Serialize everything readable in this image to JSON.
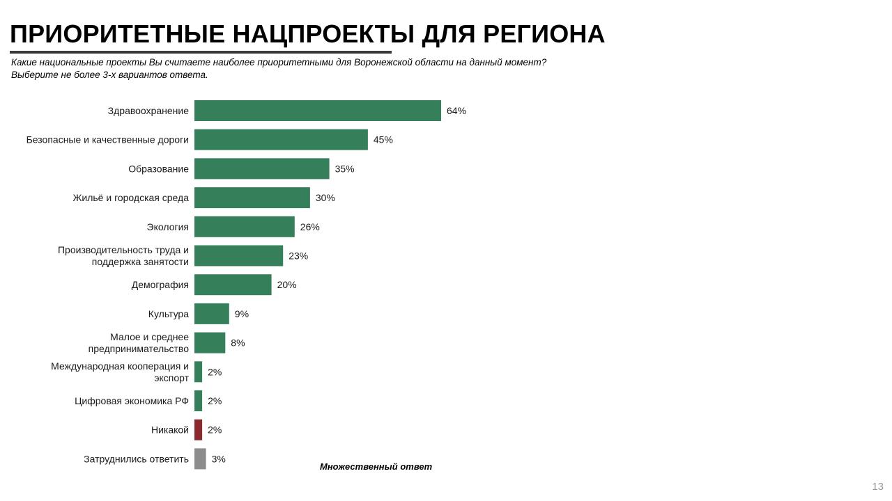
{
  "slide": {
    "title": "ПРИОРИТЕТНЫЕ НАЦПРОЕКТЫ ДЛЯ РЕГИОНА",
    "subtitle_lines": [
      "Какие национальные проекты Вы считаете наиболее приоритетными для Воронежской области на данный момент?",
      "Выберите не более 3-х вариантов ответа."
    ],
    "footnote": "Множественный ответ",
    "page_number": "13"
  },
  "chart_data": {
    "type": "bar",
    "orientation": "horizontal",
    "categories": [
      [
        "Здравоохранение"
      ],
      [
        "Безопасные и качественные дороги"
      ],
      [
        "Образование"
      ],
      [
        "Жильё и городская среда"
      ],
      [
        "Экология"
      ],
      [
        "Производительность труда и",
        "поддержка занятости"
      ],
      [
        "Демография"
      ],
      [
        "Культура"
      ],
      [
        "Малое и среднее",
        "предпринимательство"
      ],
      [
        "Международная кооперация и",
        "экспорт"
      ],
      [
        "Цифровая экономика РФ"
      ],
      [
        "Никакой"
      ],
      [
        "Затруднились ответить"
      ]
    ],
    "values": [
      64,
      45,
      35,
      30,
      26,
      23,
      20,
      9,
      8,
      2,
      2,
      2,
      3
    ],
    "value_labels": [
      "64%",
      "45%",
      "35%",
      "30%",
      "26%",
      "23%",
      "20%",
      "9%",
      "8%",
      "2%",
      "2%",
      "2%",
      "3%"
    ],
    "unit": "%",
    "bar_colors": [
      "#367f5b",
      "#367f5b",
      "#367f5b",
      "#367f5b",
      "#367f5b",
      "#367f5b",
      "#367f5b",
      "#367f5b",
      "#367f5b",
      "#367f5b",
      "#367f5b",
      "#8b2a2e",
      "#8c8c8c"
    ],
    "xlim": [
      0,
      64
    ],
    "grid": false,
    "legend": "none"
  }
}
